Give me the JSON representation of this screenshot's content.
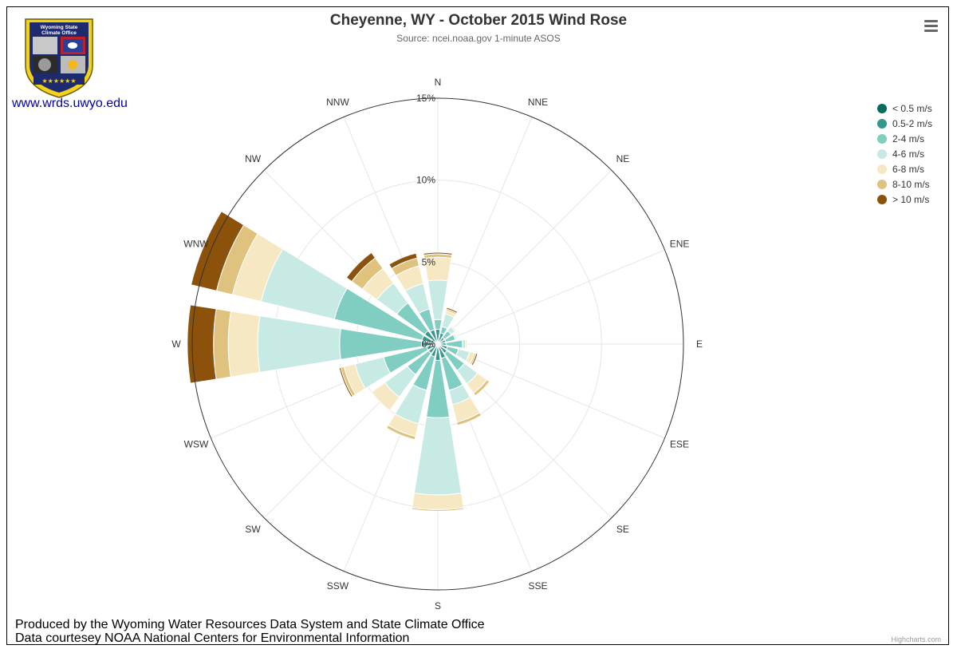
{
  "header": {
    "site_link": "www.wrds.uwyo.edu",
    "logo_text_line1": "Wyoming State",
    "logo_text_line2": "Climate Office",
    "menu_icon": "hamburger-menu-icon"
  },
  "footer": {
    "line1": "Produced by the Wyoming Water Resources Data System and State Climate Office",
    "line2": "Data courtesey NOAA National Centers for Environmental Information",
    "credits": "Highcharts.com"
  },
  "chart_data": {
    "type": "bar",
    "title": "Cheyenne, WY - October 2015 Wind Rose",
    "subtitle": "Source: ncei.noaa.gov 1-minute ASOS",
    "polar": true,
    "stacking": "normal",
    "categories": [
      "N",
      "NNE",
      "NE",
      "ENE",
      "E",
      "ESE",
      "SE",
      "SSE",
      "S",
      "SSW",
      "SW",
      "WSW",
      "W",
      "WNW",
      "NW",
      "NNW"
    ],
    "yaxis_ticks": [
      0,
      5,
      10,
      15
    ],
    "yaxis_tick_labels": [
      "0%",
      "5%",
      "10%",
      "15%"
    ],
    "ylim": [
      0,
      15
    ],
    "legend_position": "right-top",
    "series": [
      {
        "name": "< 0.5 m/s",
        "color": "#046c5c",
        "values": [
          0.1,
          0.1,
          0.1,
          0.1,
          0.1,
          0.1,
          0.1,
          0.1,
          0.1,
          0.1,
          0.1,
          0.1,
          0.1,
          0.1,
          0.1,
          0.1
        ]
      },
      {
        "name": "0.5-2 m/s",
        "color": "#36978f",
        "values": [
          0.8,
          0.6,
          0.4,
          0.4,
          0.4,
          0.5,
          0.6,
          0.8,
          0.9,
          0.7,
          0.6,
          0.6,
          0.9,
          0.9,
          0.9,
          0.8
        ]
      },
      {
        "name": "2-4 m/s",
        "color": "#80cdc1",
        "values": [
          0.6,
          0.4,
          0.5,
          0.6,
          1.0,
          0.7,
          1.3,
          2.0,
          3.5,
          2.1,
          1.6,
          2.7,
          5.0,
          5.5,
          2.1,
          1.3
        ]
      },
      {
        "name": "4-6 m/s",
        "color": "#c7eae5",
        "values": [
          2.4,
          0.8,
          0.3,
          0.1,
          0.2,
          0.7,
          1.0,
          0.9,
          4.7,
          2.1,
          1.7,
          1.8,
          5.0,
          4.6,
          1.5,
          1.6
        ]
      },
      {
        "name": "6-8 m/s",
        "color": "#f6e8c3",
        "values": [
          1.4,
          0.2,
          0.1,
          0.0,
          0.1,
          0.3,
          0.7,
          1.1,
          0.9,
          0.8,
          1.0,
          0.7,
          1.8,
          1.8,
          1.1,
          1.1
        ]
      },
      {
        "name": "8-10 m/s",
        "color": "#dfc27d",
        "values": [
          0.2,
          0.1,
          0.0,
          0.0,
          0.0,
          0.1,
          0.2,
          0.2,
          0.1,
          0.2,
          0.0,
          0.2,
          0.9,
          1.0,
          0.8,
          0.5
        ]
      },
      {
        "name": "> 10 m/s",
        "color": "#8c510a",
        "values": [
          0.1,
          0.1,
          0.0,
          0.0,
          0.0,
          0.1,
          0.0,
          0.0,
          0.0,
          0.0,
          0.0,
          0.1,
          1.6,
          1.6,
          0.4,
          0.3
        ]
      }
    ]
  }
}
